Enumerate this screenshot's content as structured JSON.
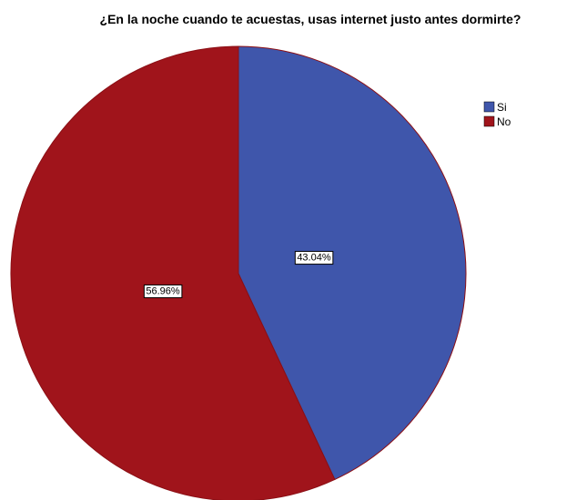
{
  "chart_data": {
    "type": "pie",
    "title": "¿En la noche cuando te acuestas, usas internet justo antes dormirte?",
    "slices": [
      {
        "label": "Si",
        "value": 43.04,
        "display": "43.04%",
        "color": "#3F56AB"
      },
      {
        "label": "No",
        "value": 56.96,
        "display": "56.96%",
        "color": "#A0141B"
      }
    ],
    "start": "12 o'clock",
    "direction": "clockwise",
    "legend": {
      "position": "top-right",
      "entries": [
        "Si",
        "No"
      ]
    },
    "outline_color": "#8B0F15"
  }
}
